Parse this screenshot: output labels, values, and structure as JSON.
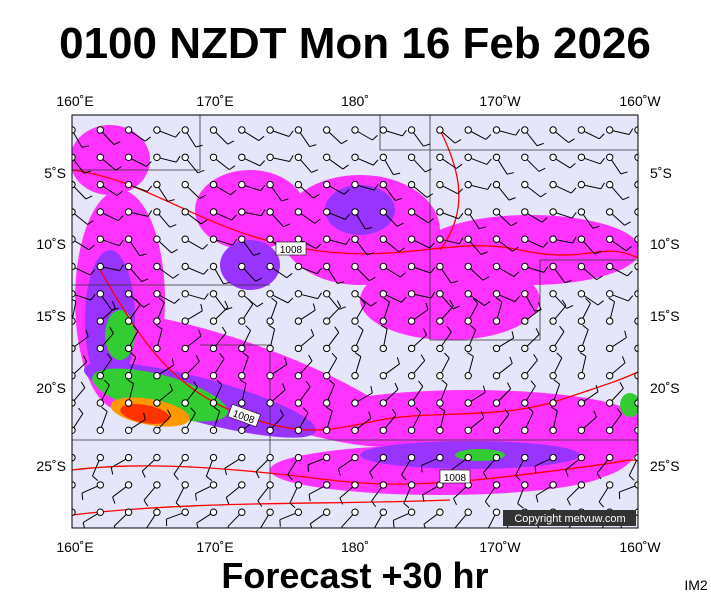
{
  "header": {
    "title": "0100 NZDT Mon 16 Feb 2026"
  },
  "map": {
    "lon_labels": [
      "160˚E",
      "170˚E",
      "180˚",
      "170˚W",
      "160˚W"
    ],
    "lat_labels": [
      "5˚S",
      "10˚S",
      "15˚S",
      "20˚S",
      "25˚S"
    ],
    "isobar_labels": [
      "1008",
      "1008",
      "1008"
    ],
    "copyright": "Copyright metvuw.com"
  },
  "footer": {
    "forecast": "Forecast +30 hr",
    "image_id": "IM2"
  }
}
